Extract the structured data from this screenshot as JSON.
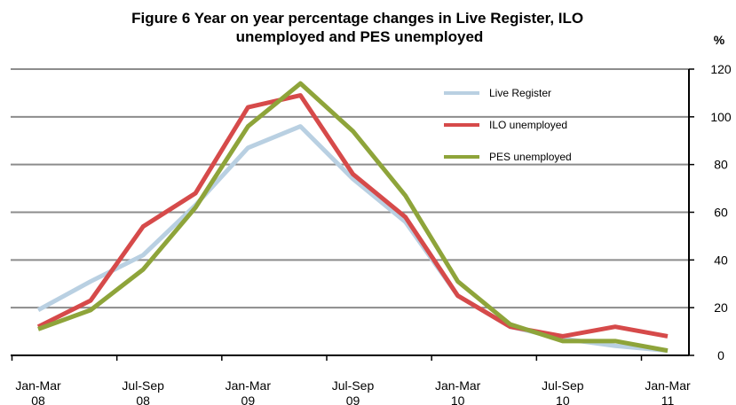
{
  "chart_data": {
    "type": "line",
    "title": [
      "Figure 6 Year on year percentage changes in Live Register, ILO",
      "unemployed and PES unemployed"
    ],
    "y_label": "%",
    "categories": [
      "Jan-Mar 08",
      null,
      "Jul-Sep 08",
      null,
      "Jan-Mar 09",
      null,
      "Jul-Sep 09",
      null,
      "Jan-Mar 10",
      null,
      "Jul-Sep 10",
      null,
      "Jan-Mar 11"
    ],
    "series": [
      {
        "name": "Live Register",
        "color": "#b9d0e2",
        "values": [
          19,
          31,
          42,
          63,
          87,
          96,
          74,
          56,
          25,
          12,
          7,
          4,
          2
        ]
      },
      {
        "name": "ILO unemployed",
        "color": "#d64a4a",
        "values": [
          12,
          23,
          54,
          68,
          104,
          109,
          76,
          58,
          25,
          12,
          8,
          12,
          8
        ]
      },
      {
        "name": "PES unemployed",
        "color": "#8ea43a",
        "values": [
          11,
          19,
          36,
          62,
          96,
          114,
          94,
          67,
          31,
          13,
          6,
          6,
          2
        ]
      }
    ],
    "ylim": [
      0,
      120
    ],
    "yticks": [
      0,
      20,
      40,
      60,
      80,
      100,
      120
    ],
    "grid": true,
    "legend": "top-right"
  }
}
